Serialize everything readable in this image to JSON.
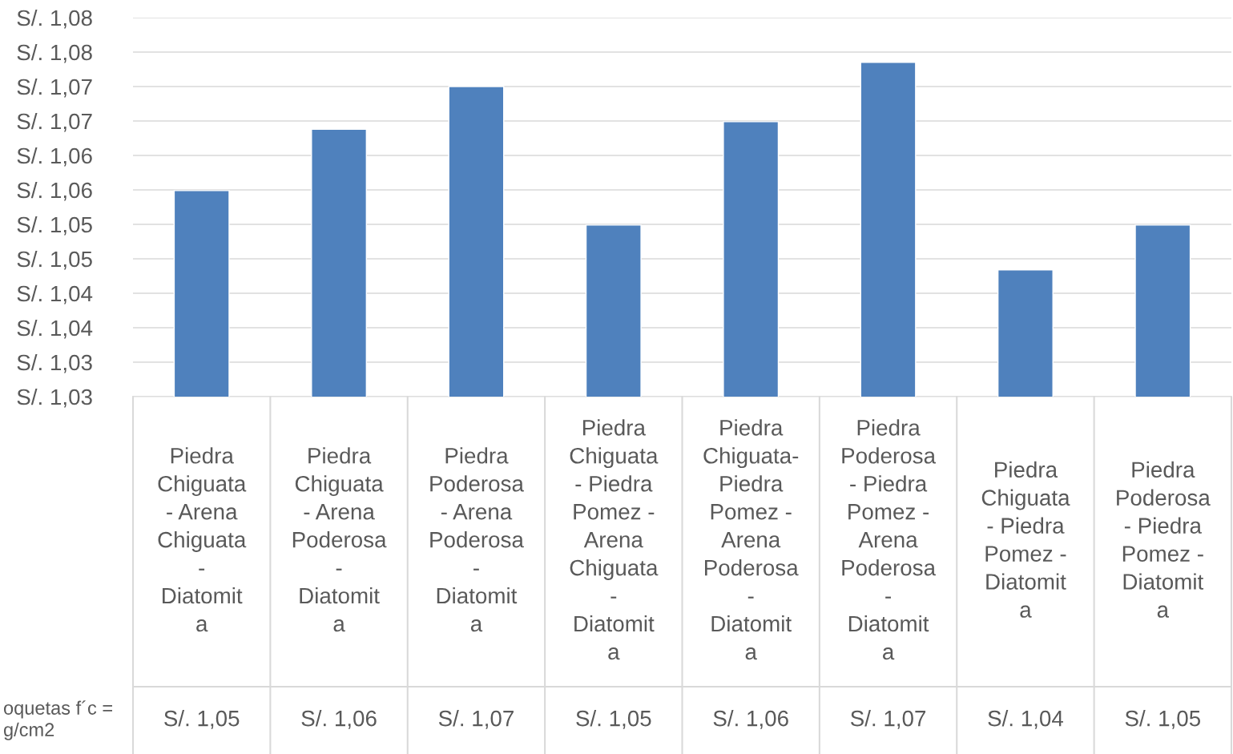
{
  "chart_data": {
    "type": "bar",
    "categories": [
      "Piedra\nChiguata\n- Arena\nChiguata\n-\nDiatomit\na",
      "Piedra\nChiguata\n- Arena\nPoderosa\n-\nDiatomit\na",
      "Piedra\nPoderosa\n- Arena\nPoderosa\n-\nDiatomit\na",
      "Piedra\nChiguata\n- Piedra\nPomez -\nArena\nChiguata\n-\nDiatomit\na",
      "Piedra\nChiguata-\nPiedra\nPomez -\nArena\nPoderosa\n-\nDiatomit\na",
      "Piedra\nPoderosa\n- Piedra\nPomez -\nArena\nPoderosa\n-\nDiatomit\na",
      "Piedra\nChiguata\n- Piedra\nPomez -\nDiatomit\na",
      "Piedra\nPoderosa\n- Piedra\nPomez -\nDiatomit\na"
    ],
    "series": [
      {
        "name": "oquetas f´c =\ng/cm2",
        "color": "#4f81bd",
        "values": [
          1.0549,
          1.0638,
          1.07,
          1.0499,
          1.0649,
          1.0735,
          1.0434,
          1.0499
        ],
        "value_labels": [
          "S/. 1,05",
          "S/. 1,06",
          "S/. 1,07",
          "S/. 1,05",
          "S/. 1,06",
          "S/. 1,07",
          "S/. 1,04",
          "S/. 1,05"
        ]
      }
    ],
    "ylim": [
      1.025,
      1.08
    ],
    "yticks": [
      {
        "value": 1.025,
        "label": "S/. 1,03"
      },
      {
        "value": 1.03,
        "label": "S/. 1,03"
      },
      {
        "value": 1.035,
        "label": "S/. 1,04"
      },
      {
        "value": 1.04,
        "label": "S/. 1,04"
      },
      {
        "value": 1.045,
        "label": "S/. 1,05"
      },
      {
        "value": 1.05,
        "label": "S/. 1,05"
      },
      {
        "value": 1.055,
        "label": "S/. 1,06"
      },
      {
        "value": 1.06,
        "label": "S/. 1,06"
      },
      {
        "value": 1.065,
        "label": "S/. 1,07"
      },
      {
        "value": 1.07,
        "label": "S/. 1,07"
      },
      {
        "value": 1.075,
        "label": "S/. 1,08"
      },
      {
        "value": 1.08,
        "label": "S/. 1,08"
      }
    ],
    "grid": "y"
  }
}
